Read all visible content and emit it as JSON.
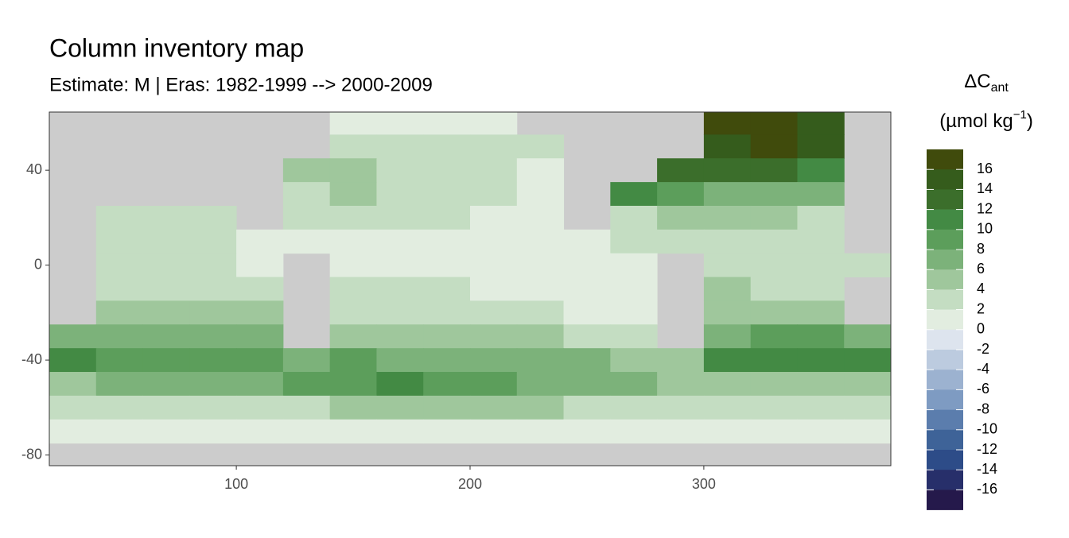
{
  "chart_data": {
    "type": "heatmap",
    "title": "Column inventory map",
    "subtitle": "Estimate: M  | Eras: 1982-1999 --> 2000-2009",
    "legend_title": "ΔC",
    "legend_title_sub": "ant",
    "legend_unit": "(µmol kg",
    "legend_unit_sup": "−1",
    "legend_unit_end": ")",
    "xlim": [
      20,
      380
    ],
    "ylim": [
      -84.5,
      64.5
    ],
    "xticks": [
      100,
      200,
      300
    ],
    "yticks": [
      40,
      0,
      -40,
      -80
    ],
    "land_color": "#cccccc",
    "x": [
      30,
      50,
      70,
      90,
      110,
      130,
      150,
      170,
      190,
      210,
      230,
      250,
      270,
      290,
      310,
      330,
      350,
      370
    ],
    "y": [
      60,
      50,
      40,
      30,
      20,
      10,
      0,
      -10,
      -20,
      -30,
      -40,
      -50,
      -60,
      -70,
      -80
    ],
    "values": [
      [
        null,
        null,
        null,
        null,
        null,
        null,
        1,
        2,
        2,
        2,
        null,
        null,
        null,
        null,
        18,
        18,
        16,
        null
      ],
      [
        null,
        null,
        null,
        null,
        null,
        null,
        3,
        4,
        4,
        4,
        3,
        null,
        null,
        null,
        16,
        18,
        16,
        null
      ],
      [
        null,
        null,
        null,
        null,
        null,
        5,
        6,
        4,
        4,
        3,
        2,
        null,
        null,
        14,
        14,
        14,
        12,
        null
      ],
      [
        null,
        null,
        null,
        null,
        null,
        4,
        5,
        4,
        4,
        3,
        2,
        null,
        12,
        10,
        8,
        8,
        8,
        null
      ],
      [
        null,
        3,
        3,
        3,
        null,
        3,
        3,
        3,
        3,
        2,
        2,
        null,
        4,
        6,
        6,
        6,
        4,
        null
      ],
      [
        null,
        3,
        3,
        3,
        2,
        2,
        2,
        2,
        2,
        2,
        2,
        2,
        4,
        4,
        4,
        4,
        4,
        null
      ],
      [
        null,
        3,
        3,
        3,
        2,
        null,
        2,
        2,
        2,
        2,
        2,
        2,
        2,
        null,
        4,
        3,
        3,
        3
      ],
      [
        null,
        4,
        4,
        4,
        3,
        null,
        3,
        3,
        3,
        2,
        2,
        2,
        2,
        null,
        5,
        4,
        3,
        null
      ],
      [
        null,
        6,
        6,
        6,
        5,
        null,
        4,
        4,
        4,
        4,
        3,
        2,
        2,
        null,
        6,
        6,
        6,
        null
      ],
      [
        8,
        8,
        8,
        8,
        7,
        null,
        5,
        5,
        6,
        6,
        5,
        4,
        3,
        null,
        8,
        9,
        9,
        8
      ],
      [
        12,
        10,
        10,
        10,
        10,
        8,
        9,
        8,
        8,
        8,
        8,
        7,
        6,
        5,
        12,
        12,
        12,
        12
      ],
      [
        6,
        7,
        7,
        8,
        8,
        10,
        10,
        12,
        10,
        9,
        8,
        7,
        7,
        6,
        5,
        6,
        6,
        6
      ],
      [
        3,
        3,
        3,
        4,
        4,
        4,
        5,
        5,
        6,
        6,
        5,
        4,
        4,
        3,
        3,
        3,
        3,
        3
      ],
      [
        2,
        2,
        2,
        2,
        2,
        1,
        2,
        2,
        2,
        2,
        2,
        2,
        2,
        2,
        2,
        2,
        2,
        2
      ],
      [
        null,
        null,
        null,
        null,
        null,
        null,
        null,
        null,
        null,
        null,
        null,
        null,
        null,
        null,
        null,
        null,
        null,
        null
      ]
    ],
    "breaks": [
      16,
      14,
      12,
      10,
      8,
      6,
      4,
      2,
      0,
      -2,
      -4,
      -6,
      -8,
      -10,
      -12,
      -14,
      -16
    ],
    "colors": [
      "#404b0c",
      "#355c1c",
      "#3b6e2b",
      "#438a44",
      "#5c9e5b",
      "#7cb27a",
      "#9fc79c",
      "#c4ddc2",
      "#e2ede0",
      "#dde4ee",
      "#bccbdf",
      "#9cb2d0",
      "#7e9bc2",
      "#5b7dad",
      "#3e6398",
      "#2d4c88",
      "#272f6a",
      "#25194b"
    ]
  }
}
